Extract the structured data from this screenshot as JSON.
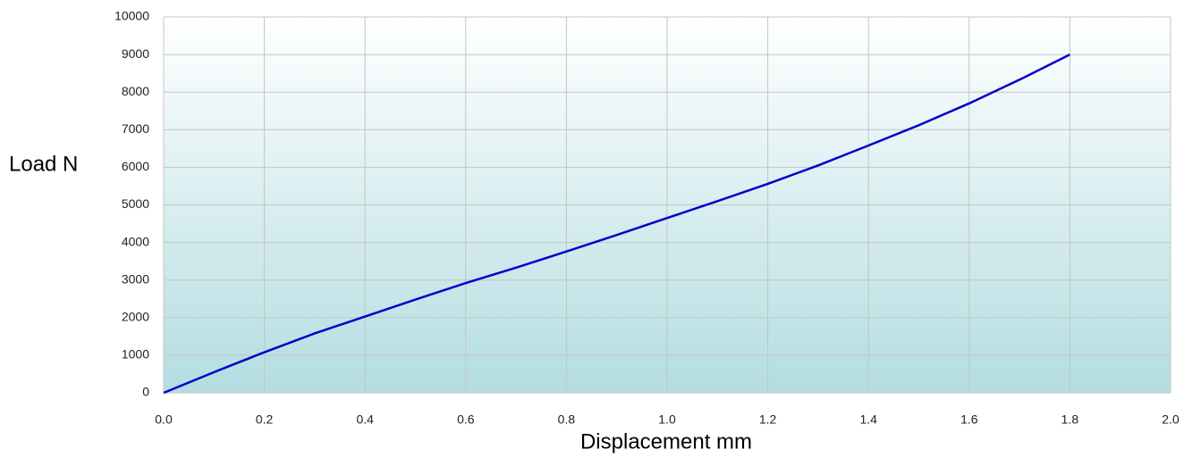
{
  "chart_data": {
    "type": "line",
    "x_label": "Displacement mm",
    "y_label": "Load N",
    "x": [
      0,
      0.1,
      0.2,
      0.3,
      0.4,
      0.5,
      0.6,
      0.7,
      0.8,
      0.9,
      1.0,
      1.1,
      1.2,
      1.3,
      1.4,
      1.5,
      1.6,
      1.7,
      1.8
    ],
    "series": [
      {
        "color": "#0000cc",
        "values": [
          0,
          550,
          1080,
          1580,
          2030,
          2480,
          2920,
          3330,
          3760,
          4200,
          4650,
          5100,
          5560,
          6050,
          6580,
          7120,
          7700,
          8330,
          9000
        ]
      }
    ],
    "xlim": [
      0,
      2.0
    ],
    "xticks": [
      {
        "value": 0,
        "label": "0.0"
      },
      {
        "value": 0.2,
        "label": "0.2"
      },
      {
        "value": 0.4,
        "label": "0.4"
      },
      {
        "value": 0.6,
        "label": "0.6"
      },
      {
        "value": 0.8,
        "label": "0.8"
      },
      {
        "value": 1.0,
        "label": "1.0"
      },
      {
        "value": 1.2,
        "label": "1.2"
      },
      {
        "value": 1.4,
        "label": "1.4"
      },
      {
        "value": 1.6,
        "label": "1.6"
      },
      {
        "value": 1.8,
        "label": "1.8"
      },
      {
        "value": 2.0,
        "label": "2.0"
      }
    ],
    "ylim": [
      0,
      10000
    ],
    "yticks": [
      0,
      1000,
      2000,
      3000,
      4000,
      5000,
      6000,
      7000,
      8000,
      9000,
      10000
    ],
    "grid": true
  }
}
